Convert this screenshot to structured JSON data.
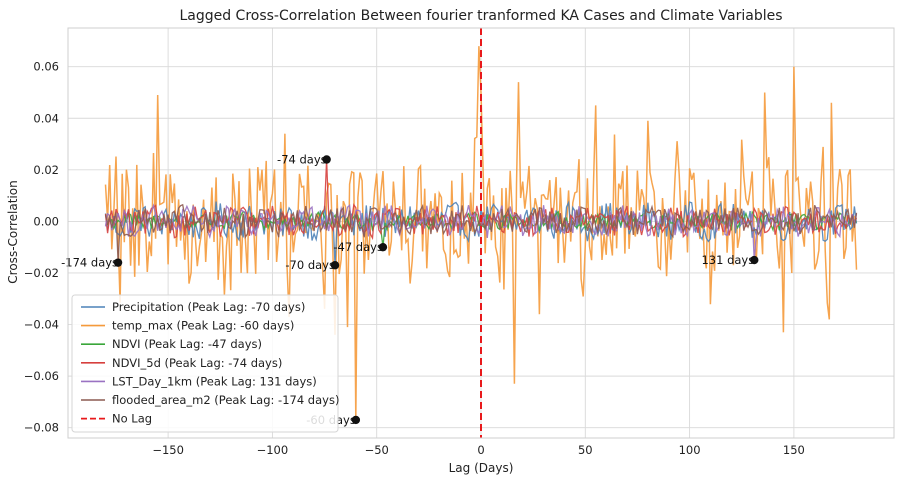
{
  "chart_data": {
    "type": "line",
    "title": "Lagged Cross-Correlation Between fourier tranformed KA Cases and Climate Variables",
    "xlabel": "Lag (Days)",
    "ylabel": "Cross-Correlation",
    "xlim": [
      -198,
      198
    ],
    "ylim": [
      -0.084,
      0.075
    ],
    "x_ticks": [
      -150,
      -100,
      -50,
      0,
      50,
      100,
      150
    ],
    "x_tick_labels": [
      "−150",
      "−100",
      "−50",
      "0",
      "50",
      "100",
      "150"
    ],
    "y_ticks": [
      -0.08,
      -0.06,
      -0.04,
      -0.02,
      0.0,
      0.02,
      0.04,
      0.06
    ],
    "y_tick_labels": [
      "−0.08",
      "−0.06",
      "−0.04",
      "−0.02",
      "0.00",
      "0.02",
      "0.04",
      "0.06"
    ],
    "grid": true,
    "lag_range": [
      -180,
      180
    ],
    "legend_position": "lower-left",
    "series": [
      {
        "name": "Precipitation (Peak Lag: -70 days)",
        "color": "#4c82b8",
        "amplitude": 0.006,
        "peak_lag": -70,
        "peak_value": -0.017
      },
      {
        "name": "temp_max (Peak Lag: -60 days)",
        "color": "#f59a3b",
        "amplitude": 0.022,
        "peak_lag": -60,
        "peak_value": -0.077
      },
      {
        "name": "NDVI (Peak Lag: -47 days)",
        "color": "#3aa63a",
        "amplitude": 0.003,
        "peak_lag": -47,
        "peak_value": -0.01
      },
      {
        "name": "NDVI_5d (Peak Lag: -74 days)",
        "color": "#d6403e",
        "amplitude": 0.005,
        "peak_lag": -74,
        "peak_value": 0.024
      },
      {
        "name": "LST_Day_1km (Peak Lag: 131 days)",
        "color": "#9a72c2",
        "amplitude": 0.005,
        "peak_lag": 131,
        "peak_value": -0.015
      },
      {
        "name": "flooded_area_m2 (Peak Lag: -174 days)",
        "color": "#8c5a50",
        "amplitude": 0.005,
        "peak_lag": -174,
        "peak_value": -0.016
      }
    ],
    "temp_max_highlights": [
      {
        "x": -155,
        "y": 0.049
      },
      {
        "x": -70,
        "y": -0.044
      },
      {
        "x": -64,
        "y": -0.041
      },
      {
        "x": -1,
        "y": 0.068
      },
      {
        "x": 0,
        "y": 0.05
      },
      {
        "x": 18,
        "y": 0.054
      },
      {
        "x": 28,
        "y": -0.036
      },
      {
        "x": 55,
        "y": 0.045
      },
      {
        "x": 80,
        "y": 0.039
      },
      {
        "x": 136,
        "y": 0.05
      },
      {
        "x": 150,
        "y": 0.06
      },
      {
        "x": 168,
        "y": 0.046
      },
      {
        "x": 184,
        "y": 0.005
      },
      {
        "x": -92,
        "y": -0.037
      },
      {
        "x": 16,
        "y": -0.063
      },
      {
        "x": 167,
        "y": -0.038
      },
      {
        "x": 145,
        "y": -0.043
      }
    ],
    "annotations": [
      {
        "text": "-74 days",
        "x": -74,
        "y": 0.024
      },
      {
        "text": "-174 days",
        "x": -174,
        "y": -0.016
      },
      {
        "text": "-70 days",
        "x": -70,
        "y": -0.017
      },
      {
        "text": "-47 days",
        "x": -47,
        "y": -0.01
      },
      {
        "text": "131 days",
        "x": 131,
        "y": -0.015
      },
      {
        "text": "-60 days",
        "x": -60,
        "y": -0.077
      }
    ],
    "reference_line": {
      "name": "No Lag",
      "x": 0,
      "color": "#e8191b"
    }
  }
}
